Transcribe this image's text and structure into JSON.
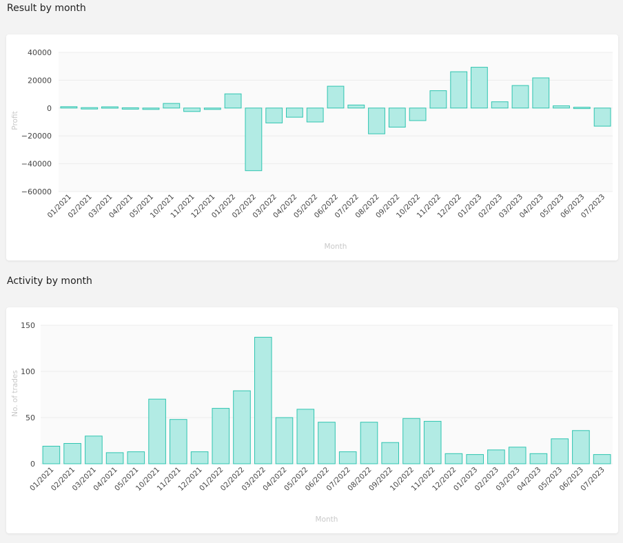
{
  "sections": {
    "result_title": "Result by month",
    "activity_title": "Activity by month"
  },
  "colors": {
    "bar_fill": "#b2ebe4",
    "bar_stroke": "#2ec4b0",
    "axis_label": "#c8c8c8",
    "tick_text": "#444444"
  },
  "chart_data": [
    {
      "type": "bar",
      "categories": [
        "01/2021",
        "02/2021",
        "03/2021",
        "04/2021",
        "05/2021",
        "10/2021",
        "11/2021",
        "12/2021",
        "01/2022",
        "02/2022",
        "03/2022",
        "04/2022",
        "05/2022",
        "06/2022",
        "07/2022",
        "08/2022",
        "09/2022",
        "10/2022",
        "11/2022",
        "12/2022",
        "01/2023",
        "02/2023",
        "03/2023",
        "04/2023",
        "05/2023",
        "06/2023",
        "07/2023"
      ],
      "values": [
        1000,
        300,
        900,
        200,
        -700,
        3300,
        -2500,
        -900,
        10200,
        -45000,
        -10700,
        -6600,
        -10000,
        15700,
        2200,
        -18500,
        -13700,
        -9000,
        12500,
        26100,
        29300,
        4500,
        16200,
        21700,
        1600,
        600,
        -13000
      ],
      "title": "",
      "xlabel": "Month",
      "ylabel": "Profit",
      "yticks": [
        "40000",
        "20000",
        "0",
        "−20000",
        "−40000",
        "−60000"
      ],
      "ylim": [
        -60000,
        40000
      ],
      "grid": true
    },
    {
      "type": "bar",
      "categories": [
        "01/2021",
        "02/2021",
        "03/2021",
        "04/2021",
        "05/2021",
        "10/2021",
        "11/2021",
        "12/2021",
        "01/2022",
        "02/2022",
        "03/2022",
        "04/2022",
        "05/2022",
        "06/2022",
        "07/2022",
        "08/2022",
        "09/2022",
        "10/2022",
        "11/2022",
        "12/2022",
        "01/2023",
        "02/2023",
        "03/2023",
        "04/2023",
        "05/2023",
        "06/2023",
        "07/2023"
      ],
      "values": [
        19,
        22,
        30,
        12,
        13,
        70,
        48,
        13,
        60,
        79,
        137,
        50,
        59,
        45,
        13,
        45,
        23,
        49,
        46,
        11,
        10,
        15,
        18,
        11,
        27,
        36,
        10
      ],
      "title": "",
      "xlabel": "Month",
      "ylabel": "No. of trades",
      "yticks": [
        "150",
        "100",
        "50",
        "0"
      ],
      "ylim": [
        0,
        150
      ],
      "grid": true
    }
  ]
}
